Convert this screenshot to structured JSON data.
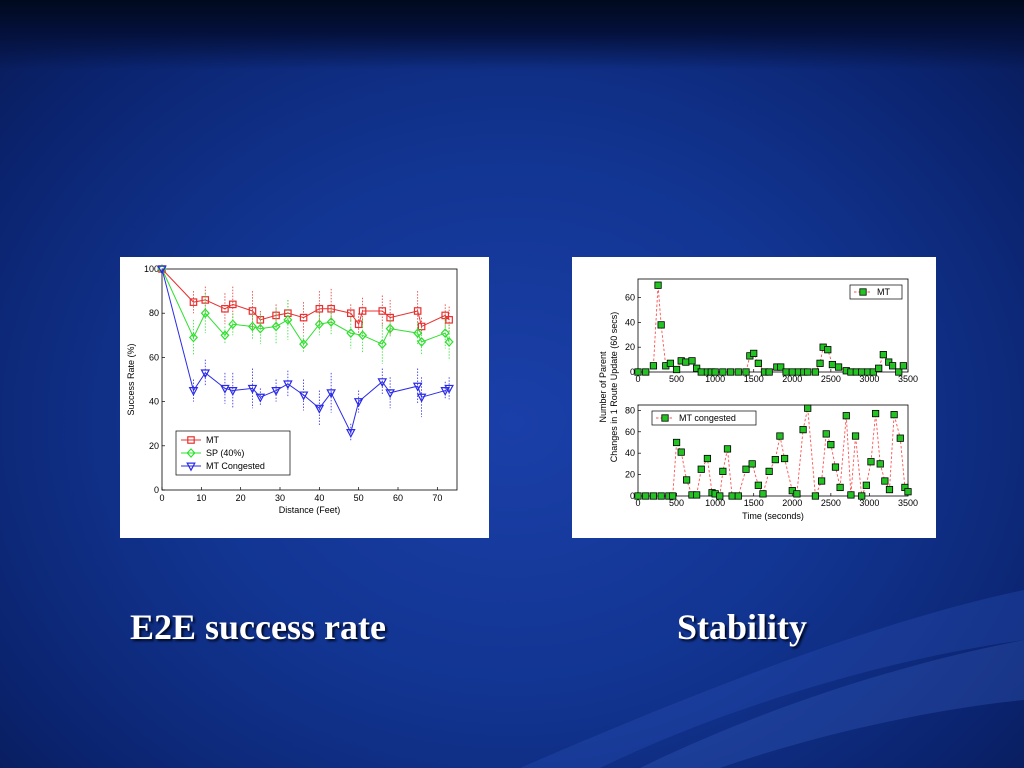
{
  "slide": {
    "caption_left": "E2E success rate",
    "caption_right": "Stability"
  },
  "chart_data": [
    {
      "type": "line",
      "title": "",
      "xlabel": "Distance (Feet)",
      "ylabel": "Success Rate (%)",
      "xlim": [
        0,
        75
      ],
      "ylim": [
        0,
        100
      ],
      "xticks": [
        0,
        10,
        20,
        30,
        40,
        50,
        60,
        70
      ],
      "yticks": [
        0,
        20,
        40,
        60,
        80,
        100
      ],
      "grid": false,
      "legend_position": "bottom-left",
      "series": [
        {
          "name": "MT",
          "color": "#e83030",
          "marker": "square",
          "x": [
            0,
            8,
            11,
            16,
            18,
            23,
            25,
            29,
            32,
            36,
            40,
            43,
            48,
            50,
            51,
            56,
            58,
            65,
            66,
            72,
            73
          ],
          "y": [
            100,
            85,
            86,
            82,
            84,
            81,
            77,
            79,
            80,
            78,
            82,
            82,
            80,
            75,
            81,
            81,
            78,
            81,
            74,
            79,
            77
          ]
        },
        {
          "name": "SP (40%)",
          "color": "#2ee02e",
          "marker": "diamond",
          "x": [
            0,
            8,
            11,
            16,
            18,
            23,
            25,
            29,
            32,
            36,
            40,
            43,
            48,
            51,
            56,
            58,
            65,
            66,
            72,
            73
          ],
          "y": [
            100,
            69,
            80,
            70,
            75,
            74,
            73,
            74,
            77,
            66,
            75,
            76,
            71,
            70,
            66,
            73,
            71,
            67,
            71,
            67
          ]
        },
        {
          "name": "MT Congested",
          "color": "#2a2ae8",
          "marker": "triangle-down",
          "x": [
            0,
            8,
            11,
            16,
            18,
            23,
            25,
            29,
            32,
            36,
            40,
            43,
            48,
            50,
            56,
            58,
            65,
            66,
            72,
            73
          ],
          "y": [
            100,
            45,
            53,
            46,
            45,
            46,
            42,
            45,
            48,
            43,
            37,
            44,
            26,
            40,
            49,
            44,
            47,
            42,
            45,
            46
          ]
        }
      ]
    },
    {
      "type": "line",
      "title": "",
      "xlabel": "",
      "ylabel": "",
      "xlim": [
        0,
        3500
      ],
      "ylim": [
        0,
        75
      ],
      "xticks": [
        0,
        500,
        1000,
        1500,
        2000,
        2500,
        3000,
        3500
      ],
      "yticks": [
        0,
        20,
        40,
        60
      ],
      "grid": false,
      "legend_position": "top-right",
      "series": [
        {
          "name": "MT",
          "color": "#ff5050",
          "marker": "square",
          "x": [
            0,
            100,
            200,
            260,
            300,
            360,
            420,
            500,
            560,
            620,
            700,
            760,
            820,
            900,
            950,
            1000,
            1100,
            1200,
            1300,
            1400,
            1450,
            1500,
            1560,
            1640,
            1700,
            1800,
            1850,
            1920,
            2000,
            2080,
            2150,
            2200,
            2300,
            2360,
            2400,
            2460,
            2520,
            2600,
            2700,
            2760,
            2830,
            2900,
            2980,
            3050,
            3120,
            3180,
            3250,
            3300,
            3380,
            3440
          ],
          "y": [
            0,
            0,
            5,
            70,
            38,
            5,
            7,
            2,
            9,
            8,
            9,
            3,
            0,
            0,
            0,
            0,
            0,
            0,
            0,
            0,
            13,
            15,
            7,
            0,
            0,
            4,
            4,
            0,
            0,
            0,
            0,
            0,
            0,
            7,
            20,
            18,
            6,
            4,
            1,
            0,
            0,
            0,
            0,
            0,
            3,
            14,
            8,
            5,
            0,
            5
          ]
        },
        {
          "name": "MT congested",
          "color": "#ff5050",
          "marker": "square",
          "x": [
            0,
            100,
            200,
            300,
            400,
            450,
            500,
            560,
            630,
            700,
            760,
            820,
            900,
            960,
            1000,
            1060,
            1100,
            1160,
            1220,
            1300,
            1400,
            1480,
            1560,
            1620,
            1700,
            1780,
            1840,
            1900,
            2000,
            2060,
            2140,
            2200,
            2300,
            2380,
            2440,
            2500,
            2560,
            2620,
            2700,
            2760,
            2820,
            2900,
            2960,
            3020,
            3080,
            3140,
            3200,
            3260,
            3320,
            3400,
            3460,
            3500
          ],
          "y": [
            0,
            0,
            0,
            0,
            0,
            0,
            50,
            41,
            15,
            1,
            1,
            25,
            35,
            3,
            2,
            0,
            23,
            44,
            0,
            0,
            25,
            30,
            10,
            2,
            23,
            34,
            56,
            35,
            5,
            2,
            62,
            82,
            0,
            14,
            58,
            48,
            27,
            8,
            75,
            1,
            56,
            0,
            10,
            32,
            77,
            30,
            14,
            6,
            76,
            54,
            8,
            4
          ]
        }
      ]
    }
  ]
}
